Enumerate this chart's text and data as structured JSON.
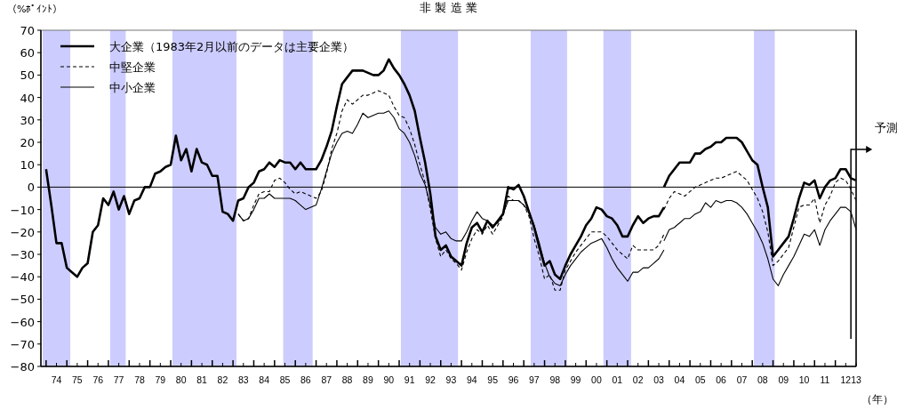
{
  "chart_data": {
    "type": "line",
    "title": "非 製 造 業",
    "ylabel": "（%ﾎﾟｲﾝﾄ）",
    "xlabel": "（年）",
    "xlim": [
      "1973-10",
      "2013-01"
    ],
    "ylim": [
      -80,
      70
    ],
    "yticks": [
      -80,
      -70,
      -60,
      -50,
      -40,
      -30,
      -20,
      -10,
      0,
      10,
      20,
      30,
      40,
      50,
      60,
      70
    ],
    "xticks": [
      {
        "value": "1974-07",
        "label": "74"
      },
      {
        "value": "1975-07",
        "label": "75"
      },
      {
        "value": "1976-07",
        "label": "76"
      },
      {
        "value": "1977-07",
        "label": "77"
      },
      {
        "value": "1978-07",
        "label": "78"
      },
      {
        "value": "1979-07",
        "label": "79"
      },
      {
        "value": "1980-07",
        "label": "80"
      },
      {
        "value": "1981-07",
        "label": "81"
      },
      {
        "value": "1982-07",
        "label": "82"
      },
      {
        "value": "1983-07",
        "label": "83"
      },
      {
        "value": "1984-07",
        "label": "84"
      },
      {
        "value": "1985-07",
        "label": "85"
      },
      {
        "value": "1986-07",
        "label": "86"
      },
      {
        "value": "1987-07",
        "label": "87"
      },
      {
        "value": "1988-07",
        "label": "88"
      },
      {
        "value": "1989-07",
        "label": "89"
      },
      {
        "value": "1990-07",
        "label": "90"
      },
      {
        "value": "1991-07",
        "label": "91"
      },
      {
        "value": "1992-07",
        "label": "92"
      },
      {
        "value": "1993-07",
        "label": "93"
      },
      {
        "value": "1994-07",
        "label": "94"
      },
      {
        "value": "1995-07",
        "label": "95"
      },
      {
        "value": "1996-07",
        "label": "96"
      },
      {
        "value": "1997-07",
        "label": "97"
      },
      {
        "value": "1998-07",
        "label": "98"
      },
      {
        "value": "1999-07",
        "label": "99"
      },
      {
        "value": "2000-07",
        "label": "00"
      },
      {
        "value": "2001-07",
        "label": "01"
      },
      {
        "value": "2002-07",
        "label": "02"
      },
      {
        "value": "2003-07",
        "label": "03"
      },
      {
        "value": "2004-07",
        "label": "04"
      },
      {
        "value": "2005-07",
        "label": "05"
      },
      {
        "value": "2006-07",
        "label": "06"
      },
      {
        "value": "2007-07",
        "label": "07"
      },
      {
        "value": "2008-07",
        "label": "08"
      },
      {
        "value": "2009-07",
        "label": "09"
      },
      {
        "value": "2010-07",
        "label": "10"
      },
      {
        "value": "2011-07",
        "label": "11"
      },
      {
        "value": "2012-07",
        "label": "12"
      },
      {
        "value": "2013-01",
        "label": "13"
      },
      {
        "value": "1974-01",
        "label": null
      },
      {
        "value": "1975-01",
        "label": null
      },
      {
        "value": "1976-01",
        "label": null
      },
      {
        "value": "1977-01",
        "label": null
      },
      {
        "value": "1978-01",
        "label": null
      },
      {
        "value": "1979-01",
        "label": null
      },
      {
        "value": "1980-01",
        "label": null
      },
      {
        "value": "1981-01",
        "label": null
      },
      {
        "value": "1982-01",
        "label": null
      },
      {
        "value": "1983-01",
        "label": null
      },
      {
        "value": "1984-01",
        "label": null
      },
      {
        "value": "1985-01",
        "label": null
      },
      {
        "value": "1986-01",
        "label": null
      },
      {
        "value": "1987-01",
        "label": null
      },
      {
        "value": "1988-01",
        "label": null
      },
      {
        "value": "1989-01",
        "label": null
      },
      {
        "value": "1990-01",
        "label": null
      },
      {
        "value": "1991-01",
        "label": null
      },
      {
        "value": "1992-01",
        "label": null
      },
      {
        "value": "1993-01",
        "label": null
      },
      {
        "value": "1994-01",
        "label": null
      },
      {
        "value": "1995-01",
        "label": null
      },
      {
        "value": "1996-01",
        "label": null
      },
      {
        "value": "1997-01",
        "label": null
      },
      {
        "value": "1998-01",
        "label": null
      },
      {
        "value": "1999-01",
        "label": null
      },
      {
        "value": "2000-01",
        "label": null
      },
      {
        "value": "2001-01",
        "label": null
      },
      {
        "value": "2002-01",
        "label": null
      },
      {
        "value": "2003-01",
        "label": null
      },
      {
        "value": "2004-01",
        "label": null
      },
      {
        "value": "2005-01",
        "label": null
      },
      {
        "value": "2006-01",
        "label": null
      },
      {
        "value": "2007-01",
        "label": null
      },
      {
        "value": "2008-01",
        "label": null
      },
      {
        "value": "2009-01",
        "label": null
      },
      {
        "value": "2010-01",
        "label": null
      },
      {
        "value": "2011-01",
        "label": null
      },
      {
        "value": "2012-01",
        "label": null
      }
    ],
    "grid": false,
    "legend": "top left",
    "bands": [
      {
        "axis": "x",
        "from": "1973-11",
        "to": "1975-03",
        "color": "#ccccff"
      },
      {
        "axis": "x",
        "from": "1977-02",
        "to": "1977-11",
        "color": "#ccccff"
      },
      {
        "axis": "x",
        "from": "1980-02",
        "to": "1983-03",
        "color": "#ccccff"
      },
      {
        "axis": "x",
        "from": "1985-06",
        "to": "1986-11",
        "color": "#ccccff"
      },
      {
        "axis": "x",
        "from": "1991-02",
        "to": "1993-11",
        "color": "#ccccff"
      },
      {
        "axis": "x",
        "from": "1997-05",
        "to": "1999-02",
        "color": "#ccccff"
      },
      {
        "axis": "x",
        "from": "2000-11",
        "to": "2002-03",
        "color": "#ccccff"
      },
      {
        "axis": "x",
        "from": "2008-02",
        "to": "2009-02",
        "color": "#ccccff"
      }
    ],
    "ref_lines": [
      {
        "axis": "y",
        "value": 0,
        "color": "#000000"
      },
      {
        "axis": "x",
        "value": "2012-10",
        "label": "予測",
        "color": "#000000"
      }
    ],
    "series": [
      {
        "name": "大企業（1983年2月以前のデータは主要企業）",
        "color": "#000000",
        "line_style": "solid",
        "x": [
          "1974-01",
          "1974-04",
          "1974-07",
          "1974-10",
          "1975-01",
          "1975-04",
          "1975-07",
          "1975-10",
          "1976-01",
          "1976-04",
          "1976-07",
          "1976-10",
          "1977-01",
          "1977-04",
          "1977-07",
          "1977-10",
          "1978-01",
          "1978-04",
          "1978-07",
          "1978-10",
          "1979-01",
          "1979-04",
          "1979-07",
          "1979-10",
          "1980-01",
          "1980-04",
          "1980-07",
          "1980-10",
          "1981-01",
          "1981-04",
          "1981-07",
          "1981-10",
          "1982-01",
          "1982-04",
          "1982-07",
          "1982-10",
          "1983-01",
          "1983-04",
          "1983-07",
          "1983-10",
          "1984-01",
          "1984-04",
          "1984-07",
          "1984-10",
          "1985-01",
          "1985-04",
          "1985-07",
          "1985-10",
          "1986-01",
          "1986-04",
          "1986-07",
          "1986-10",
          "1987-01",
          "1987-04",
          "1987-07",
          "1987-10",
          "1988-01",
          "1988-04",
          "1988-07",
          "1988-10",
          "1989-01",
          "1989-04",
          "1989-07",
          "1989-10",
          "1990-01",
          "1990-04",
          "1990-07",
          "1990-10",
          "1991-01",
          "1991-04",
          "1991-07",
          "1991-10",
          "1992-01",
          "1992-04",
          "1992-07",
          "1992-10",
          "1993-01",
          "1993-04",
          "1993-07",
          "1993-10",
          "1994-01",
          "1994-04",
          "1994-07",
          "1994-10",
          "1995-01",
          "1995-04",
          "1995-07",
          "1995-10",
          "1996-01",
          "1996-04",
          "1996-07",
          "1996-10",
          "1997-01",
          "1997-04",
          "1997-07",
          "1997-10",
          "1998-01",
          "1998-04",
          "1998-07",
          "1998-10",
          "1999-01",
          "1999-04",
          "1999-07",
          "1999-10",
          "2000-01",
          "2000-04",
          "2000-07",
          "2000-10",
          "2001-01",
          "2001-04",
          "2001-07",
          "2001-10",
          "2002-01",
          "2002-04",
          "2002-07",
          "2002-10",
          "2003-01",
          "2003-04",
          "2003-07",
          "2003-10"
        ],
        "values": [
          8,
          -8,
          -25,
          -25,
          -36,
          -38,
          -40,
          -36,
          -34,
          -20,
          -17,
          -5,
          -8,
          -2,
          -10,
          -4,
          -12,
          -6,
          -5,
          0,
          0,
          6,
          7,
          9,
          10,
          23,
          12,
          17,
          7,
          17,
          11,
          10,
          5,
          5,
          -11,
          -12,
          -15,
          -6,
          -5,
          0,
          2,
          7,
          8,
          11,
          9,
          12,
          11,
          11,
          8,
          11,
          8,
          8,
          8,
          12,
          18,
          25,
          36,
          46,
          49,
          52,
          52,
          52,
          51,
          50,
          50,
          52,
          57,
          53,
          50,
          46,
          41,
          34,
          22,
          11,
          -3,
          -22,
          -28,
          -26,
          -31,
          -33,
          -35,
          -25,
          -18,
          -16,
          -20,
          -15,
          -18,
          -15,
          -12,
          0,
          -1,
          1,
          -4,
          -11,
          -18,
          -27,
          -35,
          -33,
          -39,
          -41,
          -35,
          -30,
          -26,
          -22,
          -17,
          -14,
          -9,
          -10,
          -13,
          -14,
          -17,
          -22,
          -22,
          -17,
          -13,
          -16,
          -14,
          -13,
          -13,
          -9
        ]
      },
      {
        "color": "#000000",
        "line_style": "solid",
        "x": [
          "2003-10",
          "2004-01",
          "2004-04",
          "2004-07",
          "2004-10",
          "2005-01",
          "2005-04",
          "2005-07",
          "2005-10",
          "2006-01",
          "2006-04",
          "2006-07",
          "2006-10",
          "2007-01",
          "2007-04",
          "2007-07",
          "2007-10",
          "2008-01",
          "2008-04",
          "2008-07",
          "2008-10",
          "2009-01",
          "2009-04",
          "2009-07",
          "2009-10",
          "2010-01",
          "2010-04",
          "2010-07",
          "2010-10",
          "2011-01",
          "2011-04",
          "2011-07",
          "2011-10",
          "2012-01",
          "2012-04",
          "2012-07",
          "2012-10",
          "2013-01"
        ],
        "values": [
          0,
          5,
          8,
          11,
          11,
          11,
          15,
          15,
          17,
          18,
          20,
          20,
          22,
          22,
          22,
          20,
          16,
          12,
          10,
          0,
          -9,
          -31,
          -28,
          -25,
          -22,
          -14,
          -5,
          2,
          1,
          3,
          -5,
          0,
          3,
          4,
          8,
          8,
          4,
          3
        ]
      },
      {
        "name": "中堅企業",
        "color": "#000000",
        "line_style": "dashed",
        "x": [
          "1983-04",
          "1983-07",
          "1983-10",
          "1984-01",
          "1984-04",
          "1984-07",
          "1984-10",
          "1985-01",
          "1985-04",
          "1985-07",
          "1985-10",
          "1986-01",
          "1986-04",
          "1986-07",
          "1986-10",
          "1987-01",
          "1987-04",
          "1987-07",
          "1987-10",
          "1988-01",
          "1988-04",
          "1988-07",
          "1988-10",
          "1989-01",
          "1989-04",
          "1989-07",
          "1989-10",
          "1990-01",
          "1990-04",
          "1990-07",
          "1990-10",
          "1991-01",
          "1991-04",
          "1991-07",
          "1991-10",
          "1992-01",
          "1992-04",
          "1992-07",
          "1992-10",
          "1993-01",
          "1993-04",
          "1993-07",
          "1993-10",
          "1994-01",
          "1994-04",
          "1994-07",
          "1994-10",
          "1995-01",
          "1995-04",
          "1995-07",
          "1995-10",
          "1996-01",
          "1996-04",
          "1996-07",
          "1996-10",
          "1997-01",
          "1997-04",
          "1997-07",
          "1997-10",
          "1998-01",
          "1998-04",
          "1998-07",
          "1998-10",
          "1999-01",
          "1999-04",
          "1999-07",
          "1999-10",
          "2000-01",
          "2000-04",
          "2000-07",
          "2000-10",
          "2001-01",
          "2001-04",
          "2001-07",
          "2001-10",
          "2002-01",
          "2002-04",
          "2002-07",
          "2002-10",
          "2003-01",
          "2003-04",
          "2003-07",
          "2003-10"
        ],
        "values": [
          -12,
          -15,
          -14,
          -8,
          -3,
          -2,
          -2,
          3,
          4,
          2,
          -1,
          -3,
          -2,
          -3,
          -4,
          -5,
          -2,
          6,
          17,
          24,
          34,
          39,
          37,
          39,
          41,
          41,
          42,
          43,
          42,
          41,
          36,
          32,
          31,
          26,
          19,
          10,
          2,
          -10,
          -23,
          -31,
          -28,
          -32,
          -34,
          -37,
          -29,
          -23,
          -19,
          -21,
          -17,
          -21,
          -17,
          -13,
          -4,
          -6,
          -6,
          -8,
          -13,
          -23,
          -31,
          -41,
          -39,
          -46,
          -46,
          -37,
          -33,
          -29,
          -26,
          -23,
          -20,
          -20,
          -20,
          -22,
          -25,
          -28,
          -30,
          -32,
          -26,
          -28,
          -28,
          -28,
          -28,
          -26,
          -21
        ]
      },
      {
        "color": "#000000",
        "line_style": "dashed",
        "x": [
          "2003-10",
          "2004-01",
          "2004-04",
          "2004-07",
          "2004-10",
          "2005-01",
          "2005-04",
          "2005-07",
          "2005-10",
          "2006-01",
          "2006-04",
          "2006-07",
          "2006-10",
          "2007-01",
          "2007-04",
          "2007-07",
          "2007-10",
          "2008-01",
          "2008-04",
          "2008-07",
          "2008-10",
          "2009-01",
          "2009-04",
          "2009-07",
          "2009-10",
          "2010-01",
          "2010-04",
          "2010-07",
          "2010-10",
          "2011-01",
          "2011-04",
          "2011-07",
          "2011-10",
          "2012-01",
          "2012-04",
          "2012-07",
          "2012-10",
          "2013-01"
        ],
        "values": [
          -10,
          -5,
          -2,
          -3,
          -4,
          -2,
          0,
          1,
          2,
          3,
          4,
          4,
          5,
          6,
          7,
          5,
          3,
          -1,
          -5,
          -11,
          -20,
          -35,
          -33,
          -30,
          -27,
          -18,
          -9,
          -8,
          -8,
          -5,
          -16,
          -8,
          -4,
          2,
          4,
          3,
          -1,
          -6
        ]
      },
      {
        "name": "中小企業",
        "color": "#000000",
        "line_style": "solid",
        "x": [
          "1983-04",
          "1983-07",
          "1983-10",
          "1984-01",
          "1984-04",
          "1984-07",
          "1984-10",
          "1985-01",
          "1985-04",
          "1985-07",
          "1985-10",
          "1986-01",
          "1986-04",
          "1986-07",
          "1986-10",
          "1987-01",
          "1987-04",
          "1987-07",
          "1987-10",
          "1988-01",
          "1988-04",
          "1988-07",
          "1988-10",
          "1989-01",
          "1989-04",
          "1989-07",
          "1989-10",
          "1990-01",
          "1990-04",
          "1990-07",
          "1990-10",
          "1991-01",
          "1991-04",
          "1991-07",
          "1991-10",
          "1992-01",
          "1992-04",
          "1992-07",
          "1992-10",
          "1993-01",
          "1993-04",
          "1993-07",
          "1993-10",
          "1994-01",
          "1994-04",
          "1994-07",
          "1994-10",
          "1995-01",
          "1995-04",
          "1995-07",
          "1995-10",
          "1996-01",
          "1996-04",
          "1996-07",
          "1996-10",
          "1997-01",
          "1997-04",
          "1997-07",
          "1997-10",
          "1998-01",
          "1998-04",
          "1998-07",
          "1998-10",
          "1999-01",
          "1999-04",
          "1999-07",
          "1999-10",
          "2000-01",
          "2000-04",
          "2000-07",
          "2000-10",
          "2001-01",
          "2001-04",
          "2001-07",
          "2001-10",
          "2002-01",
          "2002-04",
          "2002-07",
          "2002-10",
          "2003-01",
          "2003-04",
          "2003-07",
          "2003-10"
        ],
        "values": [
          -12,
          -15,
          -14,
          -10,
          -5,
          -5,
          -3,
          -5,
          -5,
          -5,
          -5,
          -6,
          -8,
          -10,
          -9,
          -8,
          -1,
          7,
          15,
          20,
          24,
          25,
          24,
          28,
          33,
          31,
          32,
          33,
          33,
          34,
          31,
          26,
          24,
          20,
          14,
          6,
          1,
          -8,
          -18,
          -21,
          -20,
          -23,
          -24,
          -24,
          -20,
          -15,
          -11,
          -14,
          -15,
          -17,
          -16,
          -12,
          -6,
          -6,
          -6,
          -8,
          -11,
          -17,
          -25,
          -34,
          -40,
          -43,
          -44,
          -39,
          -35,
          -32,
          -29,
          -27,
          -25,
          -24,
          -23,
          -27,
          -32,
          -36,
          -39,
          -42,
          -38,
          -38,
          -36,
          -36,
          -34,
          -32,
          -28
        ]
      },
      {
        "color": "#000000",
        "line_style": "solid",
        "x": [
          "2003-10",
          "2004-01",
          "2004-04",
          "2004-07",
          "2004-10",
          "2005-01",
          "2005-04",
          "2005-07",
          "2005-10",
          "2006-01",
          "2006-04",
          "2006-07",
          "2006-10",
          "2007-01",
          "2007-04",
          "2007-07",
          "2007-10",
          "2008-01",
          "2008-04",
          "2008-07",
          "2008-10",
          "2009-01",
          "2009-04",
          "2009-07",
          "2009-10",
          "2010-01",
          "2010-04",
          "2010-07",
          "2010-10",
          "2011-01",
          "2011-04",
          "2011-07",
          "2011-10",
          "2012-01",
          "2012-04",
          "2012-07",
          "2012-10",
          "2013-01"
        ],
        "values": [
          -24,
          -19,
          -18,
          -16,
          -14,
          -14,
          -12,
          -11,
          -7,
          -9,
          -6,
          -7,
          -6,
          -6,
          -7,
          -9,
          -12,
          -16,
          -20,
          -25,
          -32,
          -41,
          -44,
          -39,
          -35,
          -31,
          -26,
          -21,
          -22,
          -19,
          -26,
          -19,
          -15,
          -12,
          -9,
          -9,
          -11,
          -19
        ]
      }
    ]
  }
}
